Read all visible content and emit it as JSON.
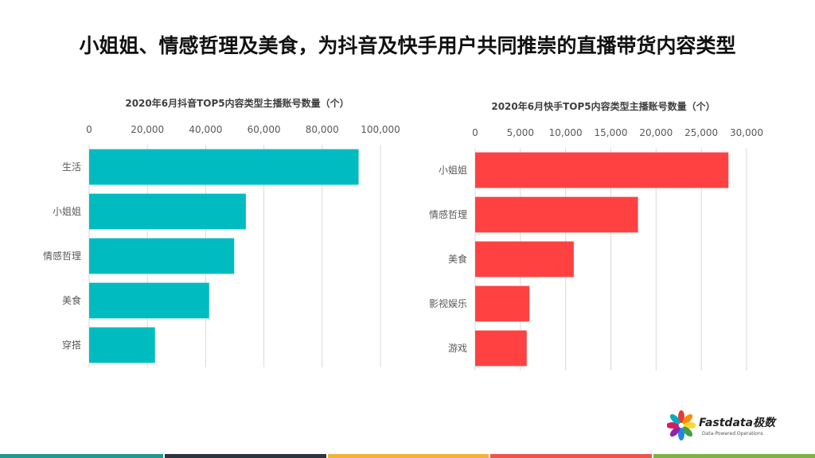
{
  "headline": "小姐姐、情感哲理及美食，为抖音及快手用户共同推崇的直播带货内容类型",
  "colors": {
    "douyin_bar": "#00BCC0",
    "kuaishou_bar": "#FF4141",
    "grid": "#d9d9d9",
    "axis_text": "#595959"
  },
  "chart_data": [
    {
      "type": "bar",
      "orientation": "horizontal",
      "title": "2020年6月抖音TOP5内容类型主播账号数量（个）",
      "categories": [
        "生活",
        "小姐姐",
        "情感哲理",
        "美食",
        "穿搭"
      ],
      "values": [
        92500,
        53800,
        49800,
        41200,
        22600
      ],
      "xlim": [
        0,
        100000
      ],
      "xticks": [
        0,
        20000,
        40000,
        60000,
        80000,
        100000
      ],
      "xtick_labels": [
        "0",
        "20,000",
        "40,000",
        "60,000",
        "80,000",
        "100,000"
      ],
      "axis_position": "top",
      "grid": true,
      "color": "#00BCC0"
    },
    {
      "type": "bar",
      "orientation": "horizontal",
      "title": "2020年6月快手TOP5内容类型主播账号数量（个）",
      "categories": [
        "小姐姐",
        "情感哲理",
        "美食",
        "影视娱乐",
        "游戏"
      ],
      "values": [
        28000,
        18000,
        10900,
        6000,
        5700
      ],
      "xlim": [
        0,
        30000
      ],
      "xticks": [
        0,
        5000,
        10000,
        15000,
        20000,
        25000,
        30000
      ],
      "xtick_labels": [
        "0",
        "5,000",
        "10,000",
        "15,000",
        "20,000",
        "25,000",
        "30,000"
      ],
      "axis_position": "top",
      "grid": true,
      "color": "#FF4141"
    }
  ],
  "logo": {
    "name": "Fastdata极数",
    "tagline": "Data-Powered Operations"
  },
  "footer_colors": [
    "#1F9A8F",
    "#2B3442",
    "#F2B33D",
    "#EF5350",
    "#7CB342"
  ]
}
